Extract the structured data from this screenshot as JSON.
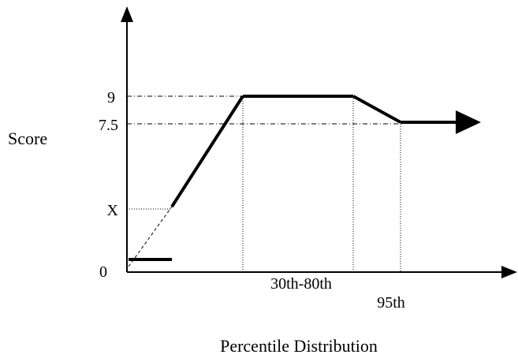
{
  "chart_data": {
    "type": "line",
    "title": "",
    "xlabel": "Percentile Distribution",
    "ylabel": "Score",
    "y_ticks": [
      "9",
      "7.5",
      "X",
      "0"
    ],
    "x_annotations": [
      "30th-80th",
      "95th"
    ],
    "series": [
      {
        "points": [
          {
            "x": "start",
            "y": 0
          },
          {
            "x": "30th",
            "y": 9
          },
          {
            "x": "80th",
            "y": 9
          },
          {
            "x": "95th",
            "y": 7.5
          },
          {
            "x": "beyond 95th",
            "y": 7.5
          }
        ]
      }
    ],
    "grid": false,
    "legend": "none"
  },
  "colors": {
    "line": "#000000",
    "background": "#ffffff"
  }
}
